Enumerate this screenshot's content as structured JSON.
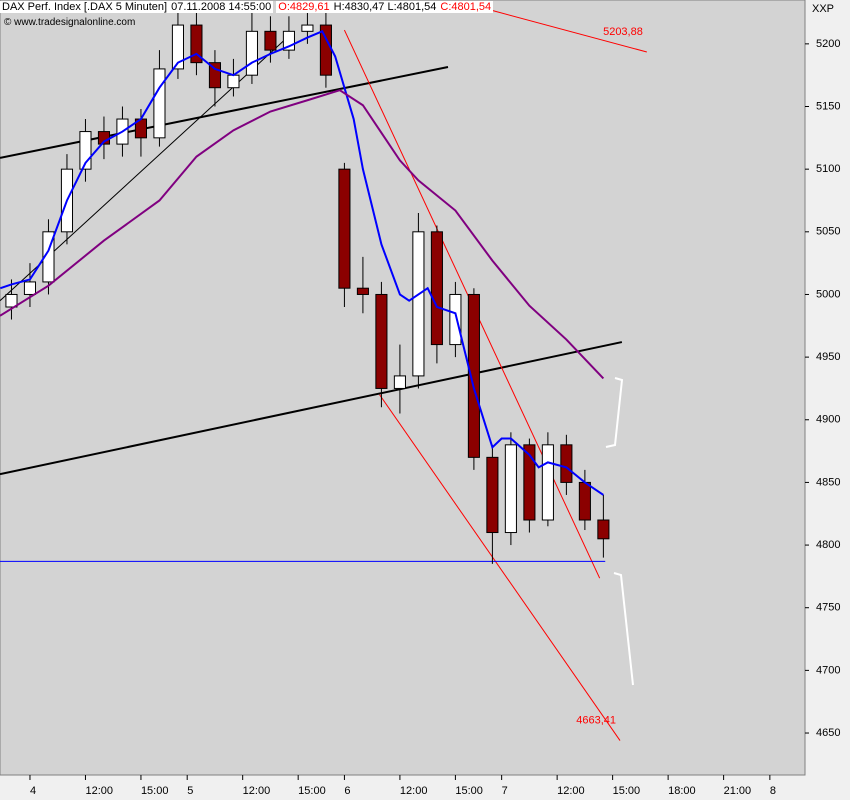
{
  "chart_data": {
    "type": "candlestick",
    "title": "DAX Perf. Index [.DAX  5 Minuten]",
    "timestamp": "07.11.2008 14:55:00",
    "header_items": [
      {
        "text": "O:4829,61",
        "color": "#ff0000"
      },
      {
        "text": "H:4830,47 L:4801,54",
        "color": "#000000"
      },
      {
        "text": "C:4801,54",
        "color": "#ff0000"
      }
    ],
    "copyright": "© www.tradesignalonline.com",
    "symbol": "XXP",
    "up_color": "#ffffff",
    "down_color": "#8b0000",
    "x": [
      -1,
      0,
      1,
      2,
      3,
      4,
      5,
      6,
      7,
      8,
      9,
      10,
      11,
      12,
      13,
      14,
      15,
      16,
      17,
      18,
      19,
      20,
      21,
      22,
      23,
      24,
      25,
      26,
      27,
      28,
      29,
      30,
      31
    ],
    "open": [
      4990,
      5000,
      5010,
      5050,
      5100,
      5130,
      5120,
      5140,
      5125,
      5180,
      5215,
      5185,
      5165,
      5175,
      5210,
      5195,
      5210,
      5215,
      5100,
      5005,
      5000,
      4925,
      4935,
      5050,
      4960,
      5000,
      4870,
      4810,
      4880,
      4820,
      4880,
      4850,
      4820
    ],
    "high": [
      5012,
      5025,
      5060,
      5112,
      5140,
      5142,
      5150,
      5148,
      5195,
      5232,
      5225,
      5195,
      5188,
      5228,
      5222,
      5222,
      5230,
      5225,
      5105,
      5030,
      5010,
      4960,
      5065,
      5055,
      5010,
      5005,
      4880,
      4890,
      4885,
      4890,
      4888,
      4860,
      4840
    ],
    "low": [
      4980,
      4990,
      5000,
      5040,
      5090,
      5108,
      5110,
      5110,
      5118,
      5172,
      5175,
      5150,
      5158,
      5168,
      5185,
      5188,
      5200,
      5165,
      4990,
      4985,
      4910,
      4905,
      4925,
      4945,
      4950,
      4860,
      4785,
      4800,
      4810,
      4815,
      4840,
      4812,
      4790
    ],
    "close": [
      5000,
      5010,
      5050,
      5100,
      5130,
      5120,
      5140,
      5125,
      5180,
      5215,
      5185,
      5165,
      5175,
      5210,
      5195,
      5210,
      5215,
      5175,
      5005,
      5000,
      4925,
      4935,
      5050,
      4960,
      5000,
      4870,
      4810,
      4880,
      4820,
      4880,
      4850,
      4820,
      4805
    ],
    "lines": [
      {
        "color": "#0000ff",
        "x": [
          -1.6,
          -1,
          0,
          1,
          2,
          3,
          4,
          5,
          6,
          7,
          8,
          9,
          10,
          11,
          12,
          13,
          14,
          15,
          15.8,
          16.5,
          17,
          17.5,
          18,
          19,
          20,
          20.5,
          21,
          21.5,
          22,
          23,
          24,
          25,
          25.5,
          26,
          27,
          27.5,
          28,
          29,
          30,
          31
        ],
        "values": [
          5005,
          5008,
          5012,
          5035,
          5075,
          5105,
          5122,
          5130,
          5140,
          5165,
          5185,
          5192,
          5180,
          5175,
          5185,
          5192,
          5198,
          5205,
          5210,
          5190,
          5165,
          5140,
          5100,
          5040,
          5000,
          4995,
          5000,
          5005,
          4990,
          4985,
          4925,
          4878,
          4885,
          4885,
          4872,
          4862,
          4866,
          4862,
          4850,
          4840
        ]
      },
      {
        "color": "#800080",
        "x": [
          -1.62,
          1,
          4,
          7,
          9,
          11,
          13,
          15,
          16.75,
          18,
          20,
          21,
          23,
          25,
          27,
          29,
          31
        ],
        "values": [
          4983,
          5007,
          5043,
          5075,
          5110,
          5131,
          5146,
          5155,
          5163,
          5151,
          5107,
          5091,
          5067,
          5027,
          4991,
          4964,
          4933
        ]
      }
    ],
    "trendlines": [
      {
        "color": "#000000",
        "width": 2,
        "x": [
          -1.62,
          22.6
        ],
        "values": [
          5109,
          5181.5
        ]
      },
      {
        "color": "#000000",
        "width": 2,
        "x": [
          -1.62,
          32
        ],
        "values": [
          4856.6,
          4962
        ]
      },
      {
        "color": "#000000",
        "width": 1,
        "x": [
          -1.62,
          14.05
        ],
        "values": [
          4995,
          5207
        ]
      },
      {
        "color": "#ff0000",
        "width": 1,
        "x": [
          24.9,
          33.35
        ],
        "values": [
          5227,
          5193.5
        ],
        "label": "5203,88"
      },
      {
        "color": "#ff0000",
        "width": 1,
        "x": [
          17.0,
          30.8
        ],
        "values": [
          5211,
          4773.6
        ]
      },
      {
        "color": "#ff0000",
        "width": 1,
        "x": [
          18.9,
          31.9
        ],
        "values": [
          4920,
          4644
        ],
        "label": "4663,41"
      },
      {
        "color": "#0000ff",
        "width": 1,
        "x": [
          -1.62,
          31.1
        ],
        "values": [
          4787,
          4787
        ]
      }
    ],
    "xlim": [
      -1.62,
      41.9
    ],
    "xticks": [
      {
        "value": 0,
        "label": "4"
      },
      {
        "value": 3,
        "label": "12:00"
      },
      {
        "value": 6,
        "label": "15:00"
      },
      {
        "value": 8.5,
        "label": "5"
      },
      {
        "value": 11.5,
        "label": "12:00"
      },
      {
        "value": 14.5,
        "label": "15:00"
      },
      {
        "value": 17,
        "label": "6"
      },
      {
        "value": 20,
        "label": "12:00"
      },
      {
        "value": 23,
        "label": "15:00"
      },
      {
        "value": 25.5,
        "label": "7"
      },
      {
        "value": 28.5,
        "label": "12:00"
      },
      {
        "value": 31.5,
        "label": "15:00"
      },
      {
        "value": 34.5,
        "label": "18:00"
      },
      {
        "value": 37.5,
        "label": "21:00"
      },
      {
        "value": 40,
        "label": "8"
      }
    ],
    "ylim": [
      4616.5,
      5235
    ],
    "yticks": [
      4650,
      4700,
      4750,
      4800,
      4850,
      4900,
      4950,
      5000,
      5050,
      5100,
      5150,
      5200
    ]
  }
}
